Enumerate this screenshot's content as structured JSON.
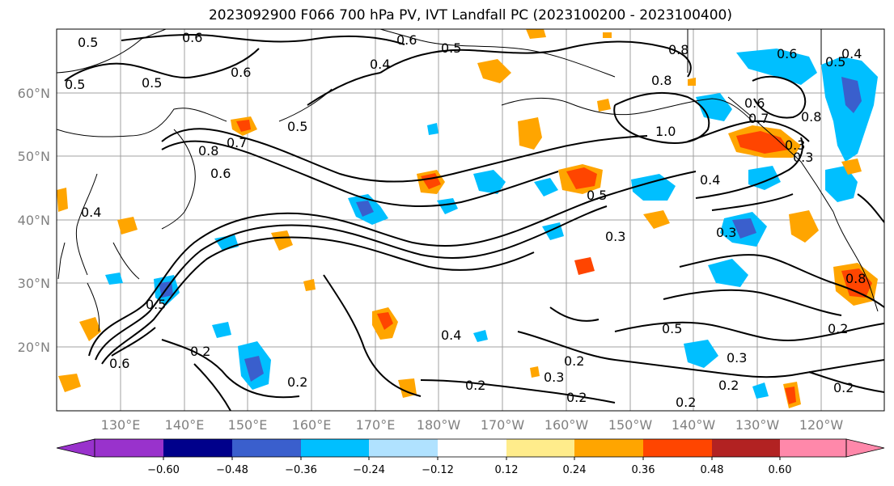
{
  "title": "2023092900 F066 700 hPa PV, IVT Landfall PC (2023100200 - 2023100400)",
  "map": {
    "lon_range": [
      120,
      250
    ],
    "lat_range": [
      10,
      70
    ],
    "lat_ticks": [
      "20°N",
      "30°N",
      "40°N",
      "50°N",
      "60°N"
    ],
    "lon_ticks": [
      "130°E",
      "140°E",
      "150°E",
      "160°E",
      "170°E",
      "180°W",
      "170°W",
      "160°W",
      "150°W",
      "140°W",
      "130°W",
      "120°W"
    ],
    "contour_labels": [
      "0.5",
      "0.6",
      "0.6",
      "0.5",
      "0.8",
      "0.6",
      "0.6",
      "0.4",
      "0.5",
      "0.5",
      "0.7",
      "0.8",
      "0.6",
      "0.4",
      "1.0",
      "0.8",
      "0.7",
      "0.5",
      "0.3",
      "0.4",
      "0.3",
      "0.6",
      "0.8",
      "0.4",
      "0.3",
      "0.5",
      "0.5",
      "0.8",
      "0.2",
      "0.4",
      "0.2",
      "0.2",
      "0.3",
      "0.2",
      "0.2",
      "0.3",
      "0.2",
      "0.2",
      "0.2",
      "0.6",
      "0.2",
      "0.3",
      "0.5",
      "0.5"
    ]
  },
  "colorbar": {
    "ticks": [
      "−0.60",
      "−0.48",
      "−0.36",
      "−0.24",
      "−0.12",
      "0.12",
      "0.24",
      "0.36",
      "0.48",
      "0.60"
    ],
    "colors": [
      "#9932cc",
      "#00008b",
      "#3a5fcd",
      "#00bfff",
      "#b0e2ff",
      "#ffffff",
      "#ffec8b",
      "#ffa500",
      "#ff4500",
      "#b22222",
      "#ff88aa"
    ]
  }
}
